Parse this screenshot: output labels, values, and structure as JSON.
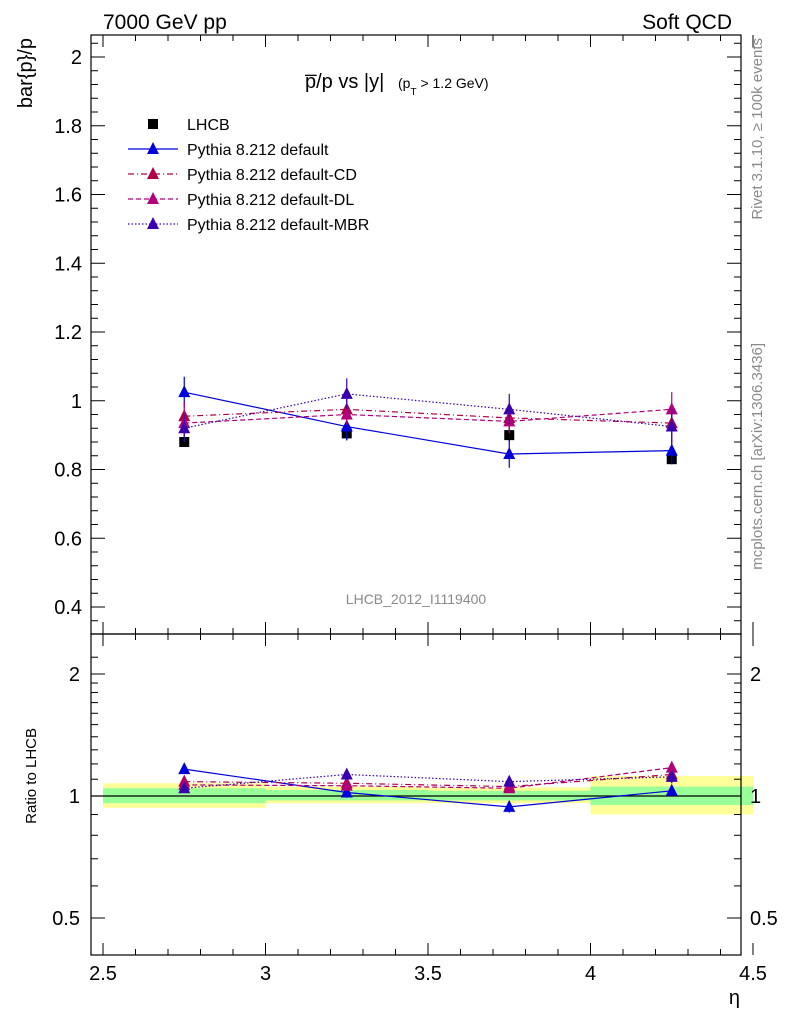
{
  "header": {
    "left": "7000 GeV pp",
    "right": "Soft QCD"
  },
  "side_text": {
    "rivet": "Rivet 3.1.10, ≥ 100k events",
    "mcplots": "mcplots.cern.ch [arXiv:1306.3436]"
  },
  "colors": {
    "lhcb": "#000000",
    "default": "#0000dd",
    "cd": "#b00045",
    "dl": "#b0007a",
    "mbr": "#3a00b0",
    "band_yellow": "#ffff99",
    "band_green": "#99ff99"
  },
  "chart_data": {
    "type": "scatter",
    "title_main": "p̅/p vs |y|",
    "title_sub": "(p",
    "title_sub_idx": "T",
    "title_sub_rest": " > 1.2 GeV)",
    "ylabel": "bar{p}/p",
    "xlabel": "η",
    "analysis_label": "LHCB_2012_I1119400",
    "xlim": [
      2.5,
      4.5
    ],
    "ylim": [
      0.35,
      2.06
    ],
    "x_ticks": [
      "2.5",
      "3",
      "3.5",
      "4",
      "4.5"
    ],
    "y_ticks": [
      "0.4",
      "0.6",
      "0.8",
      "1",
      "1.2",
      "1.4",
      "1.6",
      "1.8",
      "2"
    ],
    "x": [
      2.75,
      3.25,
      3.75,
      4.25
    ],
    "x_edges": [
      2.5,
      3.0,
      3.5,
      4.0,
      4.5
    ],
    "series": [
      {
        "name": "LHCB",
        "values": [
          0.88,
          0.905,
          0.9,
          0.83
        ],
        "errors": [
          0.01,
          0.02,
          0.02,
          0.01
        ]
      },
      {
        "name": "Pythia 8.212 default",
        "values": [
          1.025,
          0.925,
          0.845,
          0.855
        ],
        "errors": [
          0.045,
          0.04,
          0.04,
          0.04
        ]
      },
      {
        "name": "Pythia 8.212 default-CD",
        "values": [
          0.955,
          0.975,
          0.95,
          0.935
        ],
        "errors": [
          0.04,
          0.03,
          0.035,
          0.04
        ]
      },
      {
        "name": "Pythia 8.212 default-DL",
        "values": [
          0.935,
          0.96,
          0.94,
          0.975
        ],
        "errors": [
          0.04,
          0.03,
          0.035,
          0.05
        ]
      },
      {
        "name": "Pythia 8.212 default-MBR",
        "values": [
          0.92,
          1.02,
          0.975,
          0.925
        ],
        "errors": [
          0.04,
          0.045,
          0.045,
          0.05
        ]
      }
    ],
    "ratio": {
      "ylabel": "Ratio to LHCB",
      "y_ticks": [
        "0.5",
        "1",
        "2"
      ],
      "ylim": [
        0.4,
        2.4
      ],
      "band_yellow": [
        [
          0.935,
          1.075
        ],
        [
          0.96,
          1.055
        ],
        [
          0.96,
          1.05
        ],
        [
          0.9,
          1.12
        ]
      ],
      "band_green": [
        [
          0.96,
          1.045
        ],
        [
          0.975,
          1.035
        ],
        [
          0.975,
          1.03
        ],
        [
          0.95,
          1.055
        ]
      ],
      "series": [
        {
          "name": "Pythia 8.212 default",
          "values": [
            1.165,
            1.02,
            0.94,
            1.03
          ],
          "errors": [
            0.03,
            0.03,
            0.03,
            0.03
          ]
        },
        {
          "name": "Pythia 8.212 default-CD",
          "values": [
            1.085,
            1.075,
            1.055,
            1.13
          ],
          "errors": [
            0.025,
            0.02,
            0.025,
            0.03
          ]
        },
        {
          "name": "Pythia 8.212 default-DL",
          "values": [
            1.065,
            1.06,
            1.045,
            1.175
          ],
          "errors": [
            0.025,
            0.02,
            0.025,
            0.04
          ]
        },
        {
          "name": "Pythia 8.212 default-MBR",
          "values": [
            1.045,
            1.13,
            1.085,
            1.115
          ],
          "errors": [
            0.025,
            0.03,
            0.03,
            0.04
          ]
        }
      ]
    }
  }
}
